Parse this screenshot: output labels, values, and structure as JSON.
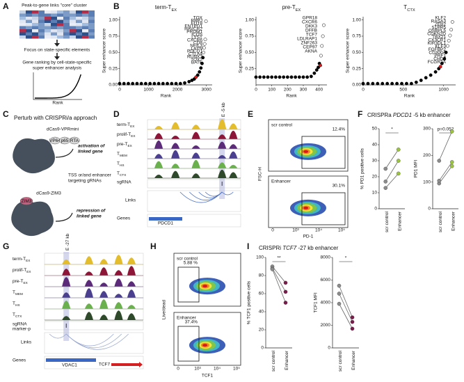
{
  "panel_labels": [
    "A",
    "B",
    "C",
    "D",
    "E",
    "F",
    "G",
    "H",
    "I"
  ],
  "panel_a": {
    "heatmap_title": "Peak-to-gene links \"core\" cluster",
    "step1": "Focus on state-specific elements",
    "step2": [
      "Gene ranking by cell-state-specific",
      "super enhancer analysis"
    ],
    "plot_x_label": "Rank"
  },
  "panel_c": {
    "title": "Perturb with CRISPRi/a approach",
    "activator": "dCas9-VPRmini",
    "domains": [
      "VP64",
      "p65",
      "RTA"
    ],
    "activation": [
      "activation of",
      "linked gene"
    ],
    "grnas": [
      "TSS or/and enhancer",
      "targeting gRNAs"
    ],
    "repressor": "dCas9-ZIM3",
    "repressor_domain": "ZIM3",
    "repression": [
      "repression of",
      "linked gene"
    ]
  },
  "panel_d": {
    "tracks": [
      {
        "name": "term-T",
        "sub": "EX"
      },
      {
        "name": "prolif-T",
        "sub": "EX"
      },
      {
        "name": "pre-T",
        "sub": "EX"
      },
      {
        "name": "T",
        "sub": "MEM"
      },
      {
        "name": "T",
        "sub": "HS"
      },
      {
        "name": "T",
        "sub": "CTX"
      }
    ],
    "sgrna": [
      "sgRNA"
    ],
    "links": "Links",
    "genes": "Genes",
    "enhancer": "E -5 kb",
    "gene_names": [
      "PDCD1"
    ]
  },
  "panel_e": {
    "plots": [
      {
        "label": "scr control",
        "percent": "12.4%"
      },
      {
        "label": "Enhancer",
        "percent": "30.1%"
      }
    ],
    "y_label": "FSC-H",
    "x_label": "PD-1",
    "x_ticks": [
      "0",
      "10³",
      "10⁴",
      "10⁵"
    ]
  },
  "panel_f": {
    "title": [
      "CRISPRa ",
      "PDCD1",
      " -5 kb enhancer"
    ]
  },
  "panel_g": {
    "tracks": [
      {
        "name": "term-T",
        "sub": "EX"
      },
      {
        "name": "prolif-T",
        "sub": "EX"
      },
      {
        "name": "pre-T",
        "sub": "EX"
      },
      {
        "name": "T",
        "sub": "MEM"
      },
      {
        "name": "T",
        "sub": "HS"
      },
      {
        "name": "T",
        "sub": "CTX"
      }
    ],
    "sgrna": [
      "sgRNA",
      "marker-p"
    ],
    "links": "Links",
    "genes": "Genes",
    "enhancer": "E -27 kb",
    "gene_names": [
      "VDAC1",
      "TCF7"
    ]
  },
  "panel_h": {
    "plots": [
      {
        "label": "scr control",
        "percent": "5.88 %"
      },
      {
        "label": "Enhancer",
        "percent": "37.4%"
      }
    ],
    "y_label": "Live/dead",
    "x_label": "TCF1",
    "x_ticks": [
      "0",
      "10³",
      "10⁴",
      "10⁵"
    ]
  },
  "panel_i": {
    "title": [
      "CRISPRi ",
      "TCF7",
      " -27 kb enhancer"
    ]
  },
  "chart_data": [
    {
      "type": "rank",
      "title": "term-T",
      "title_sub": "EX",
      "y_label": "Super enhancer score",
      "x_label": "Rank",
      "xlim": [
        0,
        3200
      ],
      "xticks": [
        0,
        1000,
        2000,
        3000
      ],
      "ylim": [
        0,
        1.05
      ],
      "yticks": [
        {
          "value": 0,
          "label": "0.00"
        },
        {
          "value": 0.25,
          "label": "0.25"
        },
        {
          "value": 0.5,
          "label": "0.50"
        },
        {
          "value": 0.75,
          "label": "0.75"
        },
        {
          "value": 1,
          "label": "1.00"
        }
      ],
      "series": [
        {
          "color": "#000000",
          "x": [
            0,
            150,
            300,
            450,
            600,
            750,
            900,
            1050,
            1200,
            1350,
            1500,
            1650,
            1800,
            1950,
            2100,
            2250,
            2400,
            2500,
            2580,
            2700,
            2760,
            2810,
            2850,
            2880
          ],
          "values": [
            0.02,
            0.02,
            0.02,
            0.02,
            0.02,
            0.02,
            0.02,
            0.02,
            0.02,
            0.02,
            0.02,
            0.02,
            0.02,
            0.02,
            0.02,
            0.03,
            0.05,
            0.07,
            0.09,
            0.15,
            0.2,
            0.26,
            0.33,
            0.42
          ]
        },
        {
          "color": "#e31a1c",
          "x": [
            2640
          ],
          "values": [
            0.12
          ]
        },
        {
          "color": "#ffffff",
          "x": [
            2900,
            2920,
            2940,
            2960,
            2985
          ],
          "values": [
            0.5,
            0.57,
            0.63,
            0.7,
            0.98
          ]
        }
      ],
      "annotations": [
        "TOX",
        "RBPJ",
        "FUT8",
        "ENTPD1",
        "HAVCR2",
        "PRDM1",
        "ICOS",
        "LYST",
        "CXCR6",
        "CD8",
        "NFIL3",
        "LAYN",
        "PDCD1",
        "CTLA4",
        "RUNX2",
        "TOX2",
        "BATF"
      ]
    },
    {
      "type": "rank",
      "title": "pre-T",
      "title_sub": "EX",
      "y_label": "Super enhancer score",
      "x_label": "Rank",
      "xlim": [
        0,
        450
      ],
      "xticks": [
        0,
        100,
        200,
        300,
        400
      ],
      "ylim": [
        0,
        1.05
      ],
      "yticks": [
        {
          "value": 0.25,
          "label": "0.25"
        },
        {
          "value": 0.5,
          "label": "0.50"
        },
        {
          "value": 0.75,
          "label": "0.75"
        },
        {
          "value": 1,
          "label": "1.00"
        }
      ],
      "series": [
        {
          "color": "#000000",
          "x": [
            0,
            25,
            50,
            75,
            100,
            125,
            150,
            175,
            200,
            225,
            250,
            275,
            300,
            325,
            350,
            370,
            385,
            395,
            402
          ],
          "values": [
            0.12,
            0.12,
            0.12,
            0.12,
            0.12,
            0.12,
            0.12,
            0.12,
            0.12,
            0.12,
            0.12,
            0.12,
            0.12,
            0.12,
            0.13,
            0.18,
            0.23,
            0.27,
            0.33
          ]
        },
        {
          "color": "#e31a1c",
          "x": [
            408
          ],
          "values": [
            0.3
          ]
        },
        {
          "color": "#ffffff",
          "x": [
            412,
            418,
            424,
            430
          ],
          "values": [
            0.45,
            0.6,
            0.75,
            0.92
          ]
        }
      ],
      "annotations": [
        "GPR18",
        "CXCR6",
        "DKK3",
        "DFFB",
        "TCF7",
        "LDLRAP1",
        "ZNF263",
        "CEP97",
        "AKNA"
      ]
    },
    {
      "type": "rank",
      "title": "T",
      "title_sub": "CTX",
      "y_label": "Super enhancer score",
      "x_label": "Rank",
      "xlim": [
        0,
        1150
      ],
      "xticks": [
        0,
        500,
        1000
      ],
      "ylim": [
        0,
        1.05
      ],
      "yticks": [
        {
          "value": 0,
          "label": "0.00"
        },
        {
          "value": 0.25,
          "label": "0.25"
        },
        {
          "value": 0.5,
          "label": "0.50"
        },
        {
          "value": 0.75,
          "label": "0.75"
        },
        {
          "value": 1,
          "label": "1.00"
        }
      ],
      "series": [
        {
          "color": "#000000",
          "x": [
            0,
            60,
            120,
            180,
            240,
            300,
            360,
            420,
            480,
            540,
            600,
            660,
            720,
            780,
            840,
            900,
            940,
            980,
            1010,
            1030
          ],
          "values": [
            0.02,
            0.02,
            0.02,
            0.02,
            0.02,
            0.02,
            0.02,
            0.02,
            0.02,
            0.02,
            0.02,
            0.04,
            0.07,
            0.11,
            0.15,
            0.2,
            0.25,
            0.33,
            0.4,
            0.5
          ]
        },
        {
          "color": "#e31a1c",
          "x": [
            960
          ],
          "values": [
            0.28
          ]
        },
        {
          "color": "#ffffff",
          "x": [
            1050,
            1065,
            1080,
            1095,
            1110
          ],
          "values": [
            0.6,
            0.68,
            0.76,
            0.85,
            0.97
          ]
        }
      ],
      "annotations": [
        "KLF2",
        "RASA3",
        "ZEB2",
        "S1PR5",
        "OSBPL5",
        "CDKN2D",
        "TBX21",
        "CX3CR1",
        "KIR3DL1",
        "KLF3",
        "FGFBP2",
        "CD300A",
        "PRF1",
        "CHD7",
        "FCGR3A"
      ]
    },
    {
      "type": "paired",
      "y_label": "% PD1 positive cells",
      "categories": [
        "scr control",
        "Enhancer"
      ],
      "point_colors": [
        "#8c8c8c",
        "#9bc53d"
      ],
      "ylim": [
        0,
        50
      ],
      "yticks": [
        0,
        10,
        20,
        30,
        40,
        50
      ],
      "series": [
        {
          "values": [
            13,
            22
          ]
        },
        {
          "values": [
            17,
            30
          ]
        },
        {
          "values": [
            25,
            37
          ]
        }
      ],
      "annotation": "*"
    },
    {
      "type": "paired",
      "y_label": "PD1 MFI",
      "categories": [
        "scr control",
        "Enhancer"
      ],
      "point_colors": [
        "#8c8c8c",
        "#9bc53d"
      ],
      "ylim": [
        0,
        300
      ],
      "yticks": [
        0,
        100,
        200,
        300
      ],
      "series": [
        {
          "values": [
            95,
            160
          ]
        },
        {
          "values": [
            105,
            175
          ]
        },
        {
          "values": [
            180,
            290
          ]
        }
      ],
      "annotation": "p=0.052"
    },
    {
      "type": "paired",
      "y_label": "% TCF1 positive cells",
      "categories": [
        "scr control",
        "Enhancer"
      ],
      "point_colors": [
        "#8c8c8c",
        "#7b1a4b"
      ],
      "ylim": [
        0,
        100
      ],
      "yticks": [
        0,
        20,
        40,
        60,
        80,
        100
      ],
      "series": [
        {
          "values": [
            90,
            72
          ]
        },
        {
          "values": [
            88,
            62
          ]
        },
        {
          "values": [
            87,
            50
          ]
        }
      ],
      "annotation": "**"
    },
    {
      "type": "paired",
      "y_label": "TCF1 MFI",
      "categories": [
        "scr control",
        "Enhancer"
      ],
      "point_colors": [
        "#8c8c8c",
        "#7b1a4b"
      ],
      "ylim": [
        0,
        8000
      ],
      "yticks": [
        0,
        2000,
        4000,
        6000,
        8000
      ],
      "series": [
        {
          "values": [
            5500,
            2700
          ]
        },
        {
          "values": [
            4800,
            2300
          ]
        },
        {
          "values": [
            3900,
            1700
          ]
        }
      ],
      "annotation": "*"
    }
  ]
}
